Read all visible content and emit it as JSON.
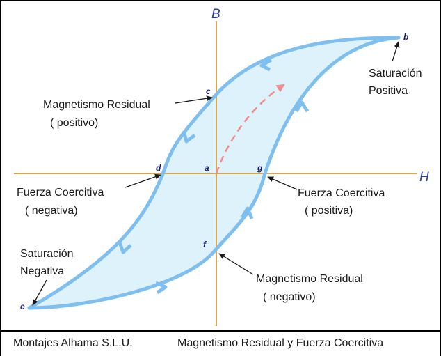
{
  "axes": {
    "vertical": "B",
    "horizontal": "H"
  },
  "points": {
    "a": "a",
    "b": "b",
    "c": "c",
    "d": "d",
    "e": "e",
    "f": "f",
    "g": "g"
  },
  "labels": {
    "sat_pos_1": "Saturación",
    "sat_pos_2": "Positiva",
    "res_pos_1": "Magnetismo Residual",
    "res_pos_2": "( positivo)",
    "coer_neg_1": "Fuerza Coercitiva",
    "coer_neg_2": "( negativa)",
    "coer_pos_1": "Fuerza Coercitiva",
    "coer_pos_2": "( positiva)",
    "sat_neg_1": "Saturación",
    "sat_neg_2": "Negativa",
    "res_neg_1": "Magnetismo Residual",
    "res_neg_2": "( negativo)"
  },
  "footer": {
    "company": "Montajes Alhama S.L.U.",
    "title": "Magnetismo Residual y Fuerza Coercitiva"
  },
  "colors": {
    "loop_stroke": "#7fbfef",
    "loop_fill": "#def2fb",
    "axis": "#d9a64a",
    "initial_curve": "#f08c8c"
  }
}
